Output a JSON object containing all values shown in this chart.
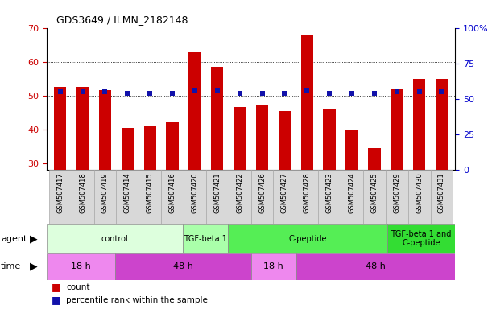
{
  "title": "GDS3649 / ILMN_2182148",
  "samples": [
    "GSM507417",
    "GSM507418",
    "GSM507419",
    "GSM507414",
    "GSM507415",
    "GSM507416",
    "GSM507420",
    "GSM507421",
    "GSM507422",
    "GSM507426",
    "GSM507427",
    "GSM507428",
    "GSM507423",
    "GSM507424",
    "GSM507425",
    "GSM507429",
    "GSM507430",
    "GSM507431"
  ],
  "counts": [
    52.5,
    52.5,
    51.5,
    40.5,
    41.0,
    42.0,
    63.0,
    58.5,
    46.5,
    47.0,
    45.5,
    68.0,
    46.0,
    40.0,
    34.5,
    52.0,
    55.0,
    55.0
  ],
  "percentiles": [
    55,
    55,
    55,
    54,
    54,
    54,
    56,
    56,
    54,
    54,
    54,
    56,
    54,
    54,
    54,
    55,
    55,
    55
  ],
  "ylim_left": [
    28,
    70
  ],
  "ylim_right": [
    0,
    100
  ],
  "yticks_left": [
    30,
    40,
    50,
    60,
    70
  ],
  "yticks_right": [
    0,
    25,
    50,
    75,
    100
  ],
  "bar_color": "#cc0000",
  "dot_color": "#1111aa",
  "agent_groups": [
    {
      "label": "control",
      "start": 0,
      "end": 6,
      "color": "#ddffdd"
    },
    {
      "label": "TGF-beta 1",
      "start": 6,
      "end": 8,
      "color": "#aaffaa"
    },
    {
      "label": "C-peptide",
      "start": 8,
      "end": 15,
      "color": "#55ee55"
    },
    {
      "label": "TGF-beta 1 and\nC-peptide",
      "start": 15,
      "end": 18,
      "color": "#33dd33"
    }
  ],
  "time_groups": [
    {
      "label": "18 h",
      "start": 0,
      "end": 3,
      "color": "#ee88ee"
    },
    {
      "label": "48 h",
      "start": 3,
      "end": 9,
      "color": "#cc44cc"
    },
    {
      "label": "18 h",
      "start": 9,
      "end": 11,
      "color": "#ee88ee"
    },
    {
      "label": "48 h",
      "start": 11,
      "end": 18,
      "color": "#cc44cc"
    }
  ],
  "legend_count_color": "#cc0000",
  "legend_pct_color": "#1111aa",
  "left_axis_color": "#cc0000",
  "right_axis_color": "#0000cc",
  "xtick_bg": "#d8d8d8",
  "gridline_color": "#000000",
  "gridline_ticks": [
    40,
    50,
    60
  ]
}
